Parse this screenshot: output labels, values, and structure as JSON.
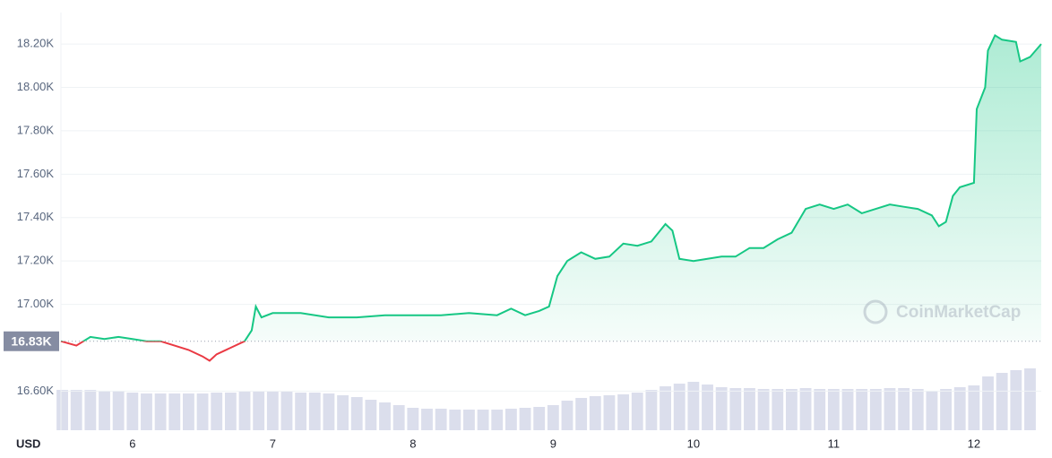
{
  "chart_data": {
    "type": "line",
    "series": [
      {
        "name": "Price",
        "color": "#16c784",
        "below_color": "#ea3943",
        "x": [
          5.49,
          5.6,
          5.7,
          5.8,
          5.9,
          6.0,
          6.1,
          6.2,
          6.3,
          6.4,
          6.5,
          6.55,
          6.6,
          6.7,
          6.8,
          6.85,
          6.88,
          6.92,
          7.0,
          7.2,
          7.4,
          7.6,
          7.8,
          8.0,
          8.2,
          8.4,
          8.6,
          8.7,
          8.8,
          8.9,
          8.97,
          9.03,
          9.1,
          9.2,
          9.3,
          9.4,
          9.5,
          9.6,
          9.7,
          9.8,
          9.85,
          9.9,
          10.0,
          10.1,
          10.2,
          10.3,
          10.4,
          10.5,
          10.6,
          10.7,
          10.8,
          10.9,
          11.0,
          11.1,
          11.2,
          11.3,
          11.4,
          11.5,
          11.6,
          11.7,
          11.75,
          11.8,
          11.85,
          11.9,
          12.0,
          12.02,
          12.08,
          12.1,
          12.15,
          12.2,
          12.3,
          12.33,
          12.4,
          12.48
        ],
        "values": [
          16830,
          16810,
          16850,
          16840,
          16850,
          16840,
          16830,
          16830,
          16810,
          16790,
          16760,
          16740,
          16770,
          16800,
          16830,
          16880,
          16990,
          16940,
          16960,
          16960,
          16940,
          16940,
          16950,
          16950,
          16950,
          16960,
          16950,
          16980,
          16950,
          16970,
          16990,
          17130,
          17200,
          17240,
          17210,
          17220,
          17280,
          17270,
          17290,
          17370,
          17340,
          17210,
          17200,
          17210,
          17220,
          17220,
          17260,
          17260,
          17300,
          17330,
          17440,
          17460,
          17440,
          17460,
          17420,
          17440,
          17460,
          17450,
          17440,
          17410,
          17360,
          17380,
          17500,
          17540,
          17560,
          17900,
          18000,
          18170,
          18240,
          18220,
          18210,
          18120,
          18140,
          18200
        ]
      }
    ],
    "volume": {
      "color": "#cfd3e6",
      "x": [
        5.5,
        5.6,
        5.7,
        5.8,
        5.9,
        6.0,
        6.1,
        6.2,
        6.3,
        6.4,
        6.5,
        6.6,
        6.7,
        6.8,
        6.9,
        7.0,
        7.1,
        7.2,
        7.3,
        7.4,
        7.5,
        7.6,
        7.7,
        7.8,
        7.9,
        8.0,
        8.1,
        8.2,
        8.3,
        8.4,
        8.5,
        8.6,
        8.7,
        8.8,
        8.9,
        9.0,
        9.1,
        9.2,
        9.3,
        9.4,
        9.5,
        9.6,
        9.7,
        9.8,
        9.9,
        10.0,
        10.1,
        10.2,
        10.3,
        10.4,
        10.5,
        10.6,
        10.7,
        10.8,
        10.9,
        11.0,
        11.1,
        11.2,
        11.3,
        11.4,
        11.5,
        11.6,
        11.7,
        11.8,
        11.9,
        12.0,
        12.1,
        12.2,
        12.3,
        12.4
      ],
      "values": [
        45,
        45,
        45,
        44,
        44,
        42,
        41,
        41,
        41,
        41,
        41,
        42,
        42,
        43,
        43,
        43,
        43,
        42,
        42,
        41,
        39,
        37,
        34,
        31,
        28,
        25,
        24,
        24,
        23,
        23,
        23,
        23,
        24,
        25,
        26,
        28,
        33,
        36,
        38,
        39,
        40,
        42,
        45,
        49,
        52,
        54,
        51,
        48,
        47,
        47,
        46,
        46,
        46,
        47,
        46,
        46,
        46,
        46,
        46,
        47,
        47,
        46,
        44,
        46,
        48,
        50,
        60,
        64,
        67,
        69
      ]
    },
    "baseline": {
      "value": 16830,
      "label": "16.83K"
    },
    "xlim": [
      5.49,
      12.48
    ],
    "xticks": [
      6,
      7,
      8,
      9,
      10,
      11,
      12
    ],
    "ylim": [
      16420,
      18345
    ],
    "yticks": [
      {
        "value": 16600,
        "label": "16.60K"
      },
      {
        "value": 17000,
        "label": "17.00K"
      },
      {
        "value": 17200,
        "label": "17.20K"
      },
      {
        "value": 17400,
        "label": "17.40K"
      },
      {
        "value": 17600,
        "label": "17.60K"
      },
      {
        "value": 17800,
        "label": "17.80K"
      },
      {
        "value": 18000,
        "label": "18.00K"
      },
      {
        "value": 18200,
        "label": "18.20K"
      }
    ],
    "grid": true,
    "currency": "USD",
    "watermark": "CoinMarketCap"
  }
}
